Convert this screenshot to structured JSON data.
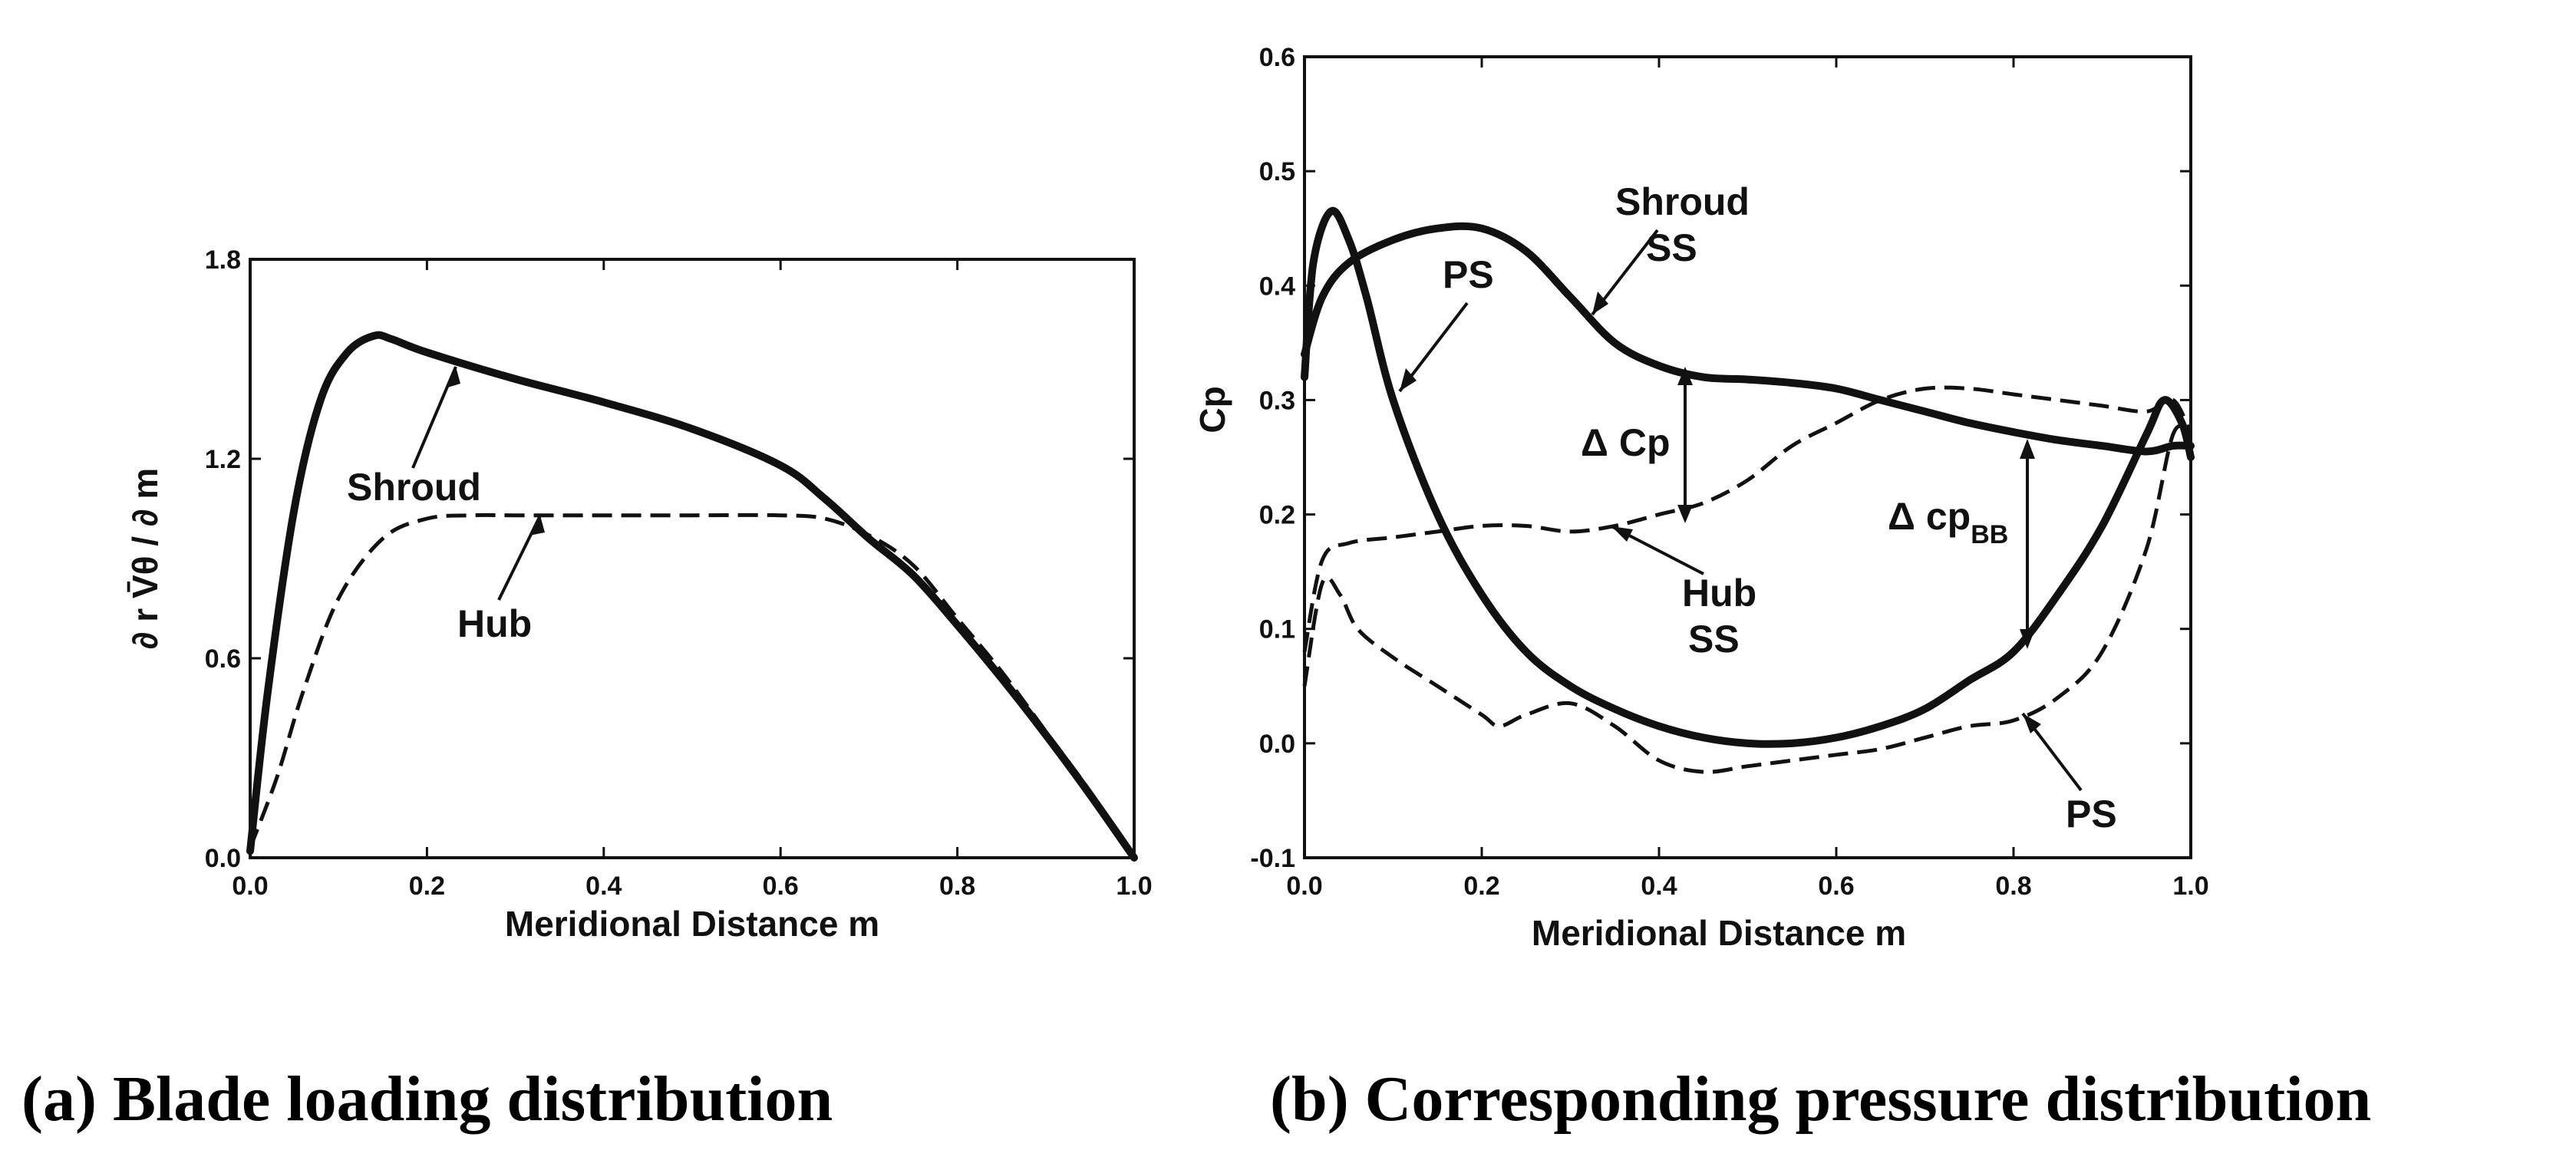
{
  "chart_data": [
    {
      "type": "line",
      "caption": "(a) Blade loading distribution",
      "xlabel": "Meridional Distance   m",
      "ylabel": "∂ r V̄θ / ∂ m",
      "xlim": [
        0.0,
        1.0
      ],
      "ylim": [
        0.0,
        1.8
      ],
      "xticks": [
        "0.0",
        "0.2",
        "0.4",
        "0.6",
        "0.8",
        "1.0"
      ],
      "yticks": [
        "0.0",
        "0.6",
        "1.2",
        "1.8"
      ],
      "series": [
        {
          "name": "Shroud",
          "style": "solid",
          "x": [
            0.0,
            0.02,
            0.05,
            0.08,
            0.11,
            0.14,
            0.16,
            0.2,
            0.3,
            0.4,
            0.5,
            0.6,
            0.65,
            0.7,
            0.75,
            0.8,
            0.85,
            0.9,
            0.95,
            1.0
          ],
          "y": [
            0.02,
            0.5,
            1.05,
            1.38,
            1.52,
            1.57,
            1.56,
            1.52,
            1.44,
            1.37,
            1.29,
            1.18,
            1.08,
            0.96,
            0.85,
            0.7,
            0.54,
            0.37,
            0.19,
            0.0
          ]
        },
        {
          "name": "Hub",
          "style": "dashed",
          "x": [
            0.0,
            0.03,
            0.06,
            0.1,
            0.15,
            0.2,
            0.25,
            0.3,
            0.4,
            0.5,
            0.6,
            0.65,
            0.7,
            0.75,
            0.8,
            0.85,
            0.9,
            0.95,
            1.0
          ],
          "y": [
            0.03,
            0.24,
            0.5,
            0.78,
            0.96,
            1.02,
            1.03,
            1.03,
            1.03,
            1.03,
            1.03,
            1.02,
            0.97,
            0.88,
            0.72,
            0.56,
            0.38,
            0.2,
            0.0
          ]
        }
      ],
      "annotations": [
        {
          "text": "Shroud",
          "points_to": [
            0.24,
            1.48
          ]
        },
        {
          "text": "Hub",
          "points_to": [
            0.34,
            1.03
          ]
        }
      ]
    },
    {
      "type": "line",
      "caption": "(b) Corresponding pressure distribution",
      "xlabel": "Meridional Distance   m",
      "ylabel": "Cp",
      "xlim": [
        0.0,
        1.0
      ],
      "ylim": [
        -0.1,
        0.6
      ],
      "xticks": [
        "0.0",
        "0.2",
        "0.4",
        "0.6",
        "0.8",
        "1.0"
      ],
      "yticks": [
        "-0.1",
        "0.0",
        "0.1",
        "0.2",
        "0.3",
        "0.4",
        "0.5",
        "0.6"
      ],
      "series": [
        {
          "name": "Shroud SS",
          "style": "solid",
          "x": [
            0.0,
            0.02,
            0.05,
            0.1,
            0.15,
            0.2,
            0.25,
            0.3,
            0.35,
            0.4,
            0.45,
            0.5,
            0.55,
            0.6,
            0.65,
            0.7,
            0.75,
            0.8,
            0.85,
            0.9,
            0.95,
            0.98,
            1.0
          ],
          "y": [
            0.34,
            0.39,
            0.42,
            0.44,
            0.45,
            0.45,
            0.43,
            0.39,
            0.35,
            0.33,
            0.32,
            0.318,
            0.315,
            0.31,
            0.3,
            0.29,
            0.28,
            0.272,
            0.265,
            0.26,
            0.255,
            0.26,
            0.26
          ]
        },
        {
          "name": "Shroud PS",
          "style": "solid",
          "x": [
            0.0,
            0.01,
            0.03,
            0.05,
            0.07,
            0.1,
            0.15,
            0.2,
            0.25,
            0.3,
            0.35,
            0.4,
            0.45,
            0.5,
            0.55,
            0.6,
            0.65,
            0.7,
            0.75,
            0.8,
            0.85,
            0.9,
            0.95,
            0.97,
            0.99,
            1.0
          ],
          "y": [
            0.32,
            0.42,
            0.465,
            0.44,
            0.39,
            0.3,
            0.2,
            0.13,
            0.08,
            0.05,
            0.03,
            0.015,
            0.005,
            0.0,
            0.0,
            0.005,
            0.015,
            0.03,
            0.055,
            0.08,
            0.13,
            0.19,
            0.27,
            0.3,
            0.28,
            0.25
          ]
        },
        {
          "name": "Hub SS",
          "style": "dashed",
          "x": [
            0.0,
            0.02,
            0.05,
            0.1,
            0.15,
            0.2,
            0.25,
            0.3,
            0.35,
            0.4,
            0.45,
            0.5,
            0.55,
            0.6,
            0.65,
            0.7,
            0.75,
            0.8,
            0.85,
            0.9,
            0.95,
            0.98,
            1.0
          ],
          "y": [
            0.08,
            0.16,
            0.175,
            0.18,
            0.185,
            0.19,
            0.19,
            0.185,
            0.19,
            0.2,
            0.21,
            0.23,
            0.26,
            0.28,
            0.3,
            0.31,
            0.31,
            0.305,
            0.3,
            0.295,
            0.29,
            0.3,
            0.27
          ]
        },
        {
          "name": "Hub PS",
          "style": "dashed",
          "x": [
            0.0,
            0.02,
            0.04,
            0.06,
            0.1,
            0.15,
            0.2,
            0.22,
            0.25,
            0.3,
            0.35,
            0.4,
            0.45,
            0.5,
            0.55,
            0.6,
            0.65,
            0.7,
            0.75,
            0.8,
            0.85,
            0.9,
            0.95,
            0.98,
            1.0
          ],
          "y": [
            0.05,
            0.14,
            0.13,
            0.1,
            0.075,
            0.05,
            0.025,
            0.015,
            0.025,
            0.035,
            0.015,
            -0.015,
            -0.025,
            -0.02,
            -0.015,
            -0.01,
            -0.005,
            0.005,
            0.015,
            0.02,
            0.04,
            0.08,
            0.17,
            0.27,
            0.27
          ]
        }
      ],
      "annotations": [
        {
          "text_lines": [
            "Shroud",
            "SS"
          ],
          "points_to": [
            0.33,
            0.37
          ]
        },
        {
          "text_lines": [
            "PS"
          ],
          "points_to": [
            0.11,
            0.31
          ]
        },
        {
          "text_lines": [
            "Δ Cp"
          ],
          "points_to": [
            0.43,
            0.26
          ]
        },
        {
          "text_lines": [
            "Hub",
            "SS"
          ],
          "points_to": [
            0.34,
            0.18
          ]
        },
        {
          "text_lines": [
            "Δ cp",
            "BB"
          ],
          "points_to": [
            0.82,
            0.17
          ]
        },
        {
          "text_lines": [
            "PS"
          ],
          "points_to": [
            0.81,
            0.03
          ]
        }
      ]
    }
  ]
}
